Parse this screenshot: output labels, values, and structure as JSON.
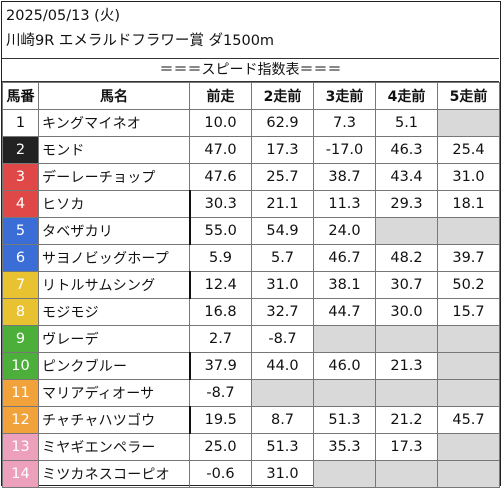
{
  "header": {
    "date": "2025/05/13 (火)",
    "race": "川崎9R エメラルドフラワー賞 ダ1500m",
    "banner": "＝＝＝スピード指数表＝＝＝"
  },
  "columns": [
    "馬番",
    "馬名",
    "前走",
    "2走前",
    "3走前",
    "4走前",
    "5走前"
  ],
  "colors": {
    "1": "#ffffff",
    "2": "#222222",
    "3": "#e04040",
    "4": "#2e7bd0",
    "5": "#2e7bd0",
    "6": "#e8c230",
    "7": "#e8c230",
    "8": "#4caf30",
    "9": "#4caf30",
    "10": "#f2a23a",
    "11": "#f2a23a",
    "12": "#e8a0b8",
    "13": "#e8a0b8",
    "14": "#e8a0b8"
  },
  "rows": [
    {
      "no": "1",
      "name": "キングマイネオ",
      "bg": "#ffffff",
      "fg": "#111111",
      "v": [
        "10.0",
        "62.9",
        "7.3",
        "5.1",
        ""
      ]
    },
    {
      "no": "2",
      "name": "モンド",
      "bg": "#222222",
      "fg": "#ffffff",
      "v": [
        "47.0",
        "17.3",
        "-17.0",
        "46.3",
        "25.4"
      ]
    },
    {
      "no": "3",
      "name": "デーレーチョップ",
      "bg": "#e04848",
      "fg": "#ffffff",
      "v": [
        "47.6",
        "25.7",
        "38.7",
        "43.4",
        "31.0"
      ]
    },
    {
      "no": "4",
      "name": "ヒソカ",
      "bg": "#e04848",
      "fg": "#ffffff",
      "v": [
        "30.3",
        "21.1",
        "11.3",
        "29.3",
        "18.1"
      ]
    },
    {
      "no": "5",
      "name": "タベザカリ",
      "bg": "#3a6ed6",
      "fg": "#ffffff",
      "v": [
        "55.0",
        "54.9",
        "24.0",
        "",
        ""
      ]
    },
    {
      "no": "6",
      "name": "サヨノビッグホープ",
      "bg": "#3a6ed6",
      "fg": "#ffffff",
      "v": [
        "5.9",
        "5.7",
        "46.7",
        "48.2",
        "39.7"
      ]
    },
    {
      "no": "7",
      "name": "リトルサムシング",
      "bg": "#e8c230",
      "fg": "#ffffff",
      "v": [
        "12.4",
        "31.0",
        "38.1",
        "30.7",
        "50.2"
      ]
    },
    {
      "no": "8",
      "name": "モジモジ",
      "bg": "#e8c230",
      "fg": "#ffffff",
      "v": [
        "16.8",
        "32.7",
        "44.7",
        "30.0",
        "15.7"
      ]
    },
    {
      "no": "9",
      "name": "ヴレーデ",
      "bg": "#4caf3a",
      "fg": "#ffffff",
      "v": [
        "2.7",
        "-8.7",
        "",
        "",
        ""
      ]
    },
    {
      "no": "10",
      "name": "ピンクブルー",
      "bg": "#4caf3a",
      "fg": "#ffffff",
      "v": [
        "37.9",
        "44.0",
        "46.0",
        "21.3",
        ""
      ]
    },
    {
      "no": "11",
      "name": "マリアディオーサ",
      "bg": "#f2a23a",
      "fg": "#ffffff",
      "v": [
        "-8.7",
        "",
        "",
        "",
        ""
      ]
    },
    {
      "no": "12",
      "name": "チャチャハツゴウ",
      "bg": "#f2a23a",
      "fg": "#ffffff",
      "v": [
        "19.5",
        "8.7",
        "51.3",
        "21.2",
        "45.7"
      ]
    },
    {
      "no": "13",
      "name": "ミヤギエンペラー",
      "bg": "#eda0bb",
      "fg": "#ffffff",
      "v": [
        "25.0",
        "51.3",
        "35.3",
        "17.3",
        ""
      ]
    },
    {
      "no": "14",
      "name": "ミツカネスコーピオ",
      "bg": "#eda0bb",
      "fg": "#ffffff",
      "v": [
        "-0.6",
        "31.0",
        "",
        "",
        ""
      ]
    }
  ]
}
